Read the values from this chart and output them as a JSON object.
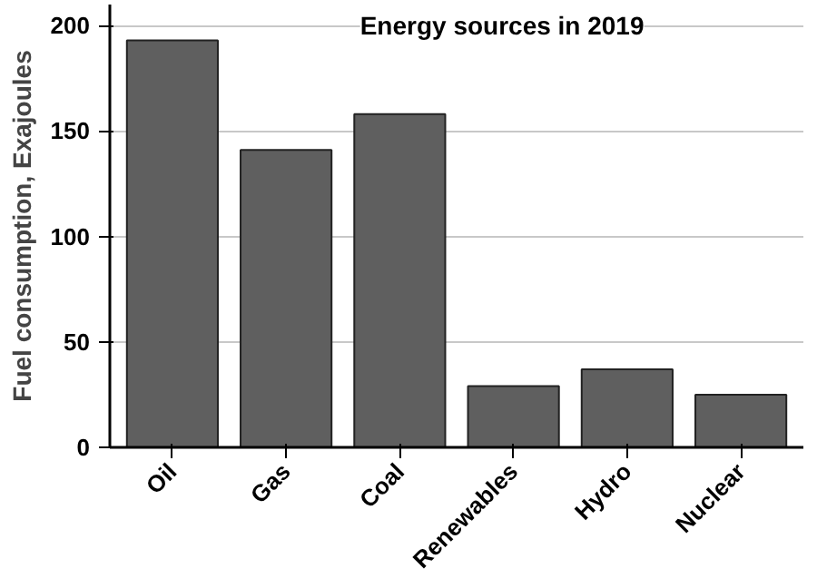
{
  "chart_data": {
    "type": "bar",
    "title": "Energy sources in 2019",
    "ylabel": "Fuel consumption, Exajoules",
    "categories": [
      "Oil",
      "Gas",
      "Coal",
      "Renewables",
      "Hydro",
      "Nuclear"
    ],
    "values": [
      193,
      141,
      158,
      29,
      37,
      25
    ],
    "color": "#5f5f5f",
    "ylim": [
      0,
      210
    ],
    "yticks": [
      0,
      50,
      100,
      150,
      200
    ],
    "grid": "y"
  }
}
